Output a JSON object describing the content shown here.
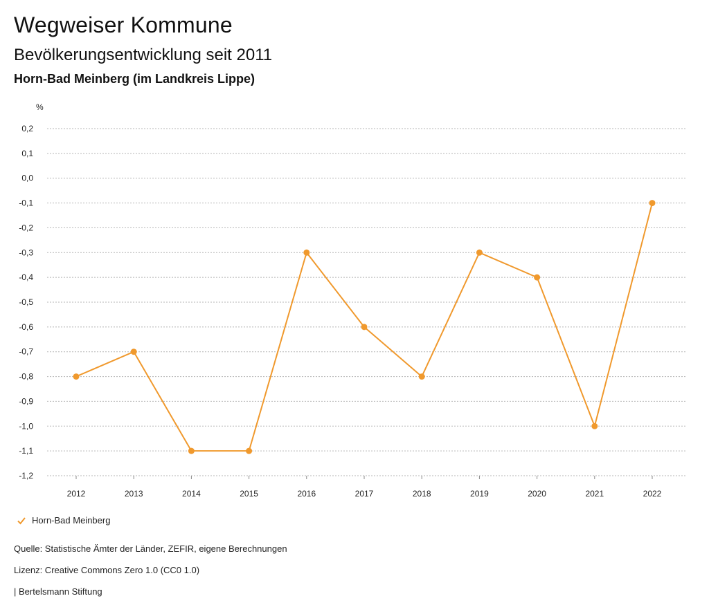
{
  "header": {
    "title": "Wegweiser Kommune",
    "subtitle": "Bevölkerungsentwicklung seit 2011",
    "place": "Horn-Bad Meinberg (im Landkreis Lippe)"
  },
  "chart_data": {
    "type": "line",
    "ylabel": "%",
    "x": [
      "2012",
      "2013",
      "2014",
      "2015",
      "2016",
      "2017",
      "2018",
      "2019",
      "2020",
      "2021",
      "2022"
    ],
    "series": [
      {
        "name": "Horn-Bad Meinberg",
        "values": [
          -0.8,
          -0.7,
          -1.1,
          -1.1,
          -0.3,
          -0.6,
          -0.8,
          -0.3,
          -0.4,
          -1.0,
          -0.1
        ]
      }
    ],
    "ylim": [
      -1.2,
      0.2
    ],
    "yticks": [
      "0,2",
      "0,1",
      "0,0",
      "-0,1",
      "-0,2",
      "-0,3",
      "-0,4",
      "-0,5",
      "-0,6",
      "-0,7",
      "-0,8",
      "-0,9",
      "-1,0",
      "-1,1",
      "-1,2"
    ],
    "grid": true,
    "legend_position": "bottom-left",
    "color": "#F0992D"
  },
  "footer": {
    "source": "Quelle: Statistische Ämter der Länder, ZEFIR, eigene Berechnungen",
    "license": "Lizenz: Creative Commons Zero 1.0 (CC0 1.0)",
    "brand": "| Bertelsmann Stiftung"
  }
}
